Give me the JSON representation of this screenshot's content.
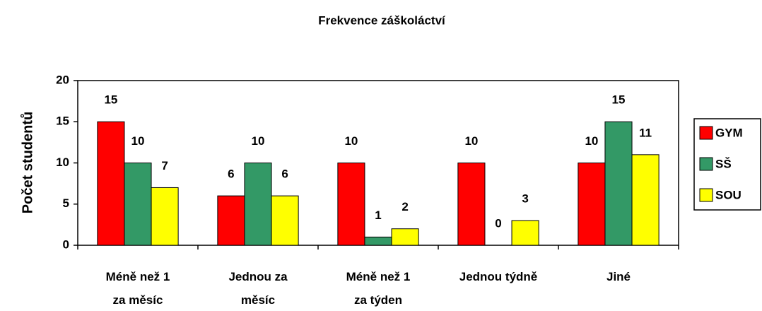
{
  "chart_data": {
    "type": "bar",
    "title": "Frekvence záškoláctví",
    "y_label": "Počet studentů",
    "categories": [
      "Méně než 1\nza měsíc",
      "Jednou za\nměsíc",
      "Méně než 1\nza týden",
      "Jednou týdně",
      "Jiné"
    ],
    "series": [
      {
        "name": "GYM",
        "color": "#ff0000",
        "values": [
          15,
          6,
          10,
          10,
          10
        ]
      },
      {
        "name": "SŠ",
        "color": "#339966",
        "values": [
          10,
          10,
          1,
          0,
          15
        ]
      },
      {
        "name": "SOU",
        "color": "#ffff00",
        "values": [
          7,
          6,
          2,
          3,
          11
        ]
      }
    ],
    "ylim": [
      0,
      20
    ],
    "yticks": [
      0,
      5,
      10,
      15,
      20
    ],
    "legend": "right"
  }
}
